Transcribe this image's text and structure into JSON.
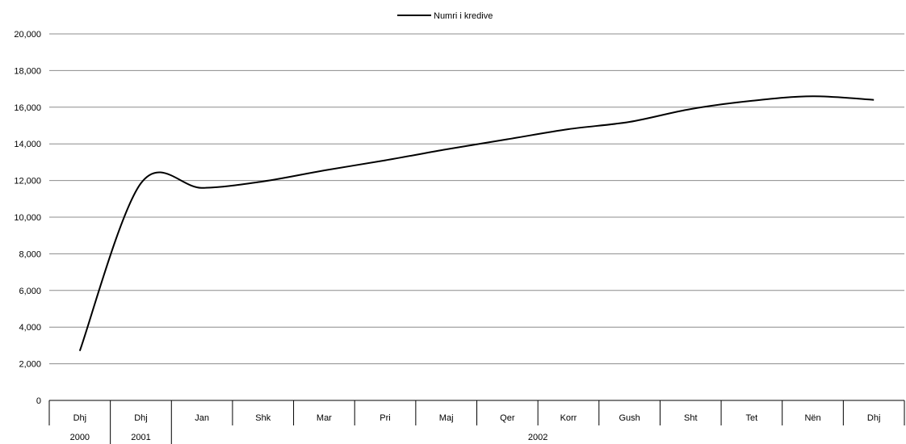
{
  "chart_data": {
    "type": "line",
    "categories": [
      "Dhj",
      "Dhj",
      "Jan",
      "Shk",
      "Mar",
      "Pri",
      "Maj",
      "Qer",
      "Korr",
      "Gush",
      "Sht",
      "Tet",
      "Nën",
      "Dhj"
    ],
    "year_groups": [
      {
        "label": "2000",
        "span": 1
      },
      {
        "label": "2001",
        "span": 1
      },
      {
        "label": "2002",
        "span": 12
      }
    ],
    "series": [
      {
        "name": "Numri i kredive",
        "color": "#000000",
        "values": [
          2700,
          11850,
          11600,
          11950,
          12550,
          13100,
          13700,
          14250,
          14800,
          15200,
          15900,
          16350,
          16600,
          16400
        ]
      }
    ],
    "yticks": [
      "0",
      "2,000",
      "4,000",
      "6,000",
      "8,000",
      "10,000",
      "12,000",
      "14,000",
      "16,000",
      "18,000",
      "20,000"
    ],
    "ylim": [
      0,
      20000
    ],
    "ystep": 2000,
    "grid": true,
    "legend_position": "top-center",
    "title": "",
    "xlabel": "",
    "ylabel": ""
  }
}
